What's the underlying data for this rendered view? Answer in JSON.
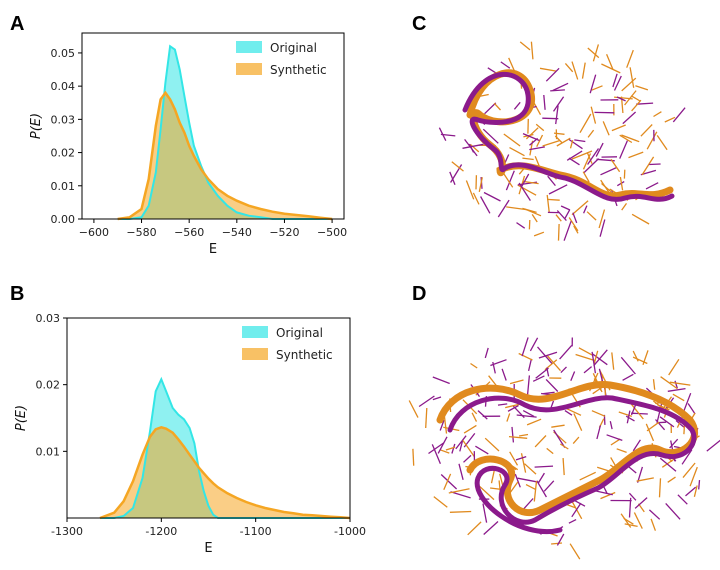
{
  "panels": {
    "A": "A",
    "B": "B",
    "C": "C",
    "D": "D"
  },
  "colors": {
    "original": "#33e6e6",
    "synthetic": "#f5a623",
    "overlap": "#a6b84a",
    "ribbon_purple": "#8b1a8b",
    "ribbon_orange": "#e08a1e"
  },
  "chart_data": [
    {
      "type": "area",
      "panel": "A",
      "xlabel": "E",
      "ylabel": "P(E)",
      "xlim": [
        -605,
        -495
      ],
      "ylim": [
        0,
        0.056
      ],
      "xticks": [
        -600,
        -580,
        -560,
        -540,
        -520,
        -500
      ],
      "xtick_labels": [
        "−600",
        "−580",
        "−560",
        "−540",
        "−520",
        "−500"
      ],
      "yticks": [
        0,
        0.01,
        0.02,
        0.03,
        0.04,
        0.05
      ],
      "ytick_labels": [
        "0.00",
        "0.01",
        "0.02",
        "0.03",
        "0.04",
        "0.05"
      ],
      "legend": "top-right",
      "x": [
        -590,
        -585,
        -580,
        -577,
        -574,
        -572,
        -570,
        -568,
        -566,
        -564,
        -562,
        -560,
        -558,
        -555,
        -552,
        -548,
        -544,
        -540,
        -535,
        -530,
        -525,
        -520,
        -515,
        -510,
        -505,
        -500
      ],
      "series": [
        {
          "name": "Original",
          "values": [
            0,
            0,
            0.0005,
            0.004,
            0.014,
            0.027,
            0.041,
            0.052,
            0.051,
            0.045,
            0.037,
            0.029,
            0.022,
            0.016,
            0.011,
            0.007,
            0.004,
            0.002,
            0.001,
            0.0005,
            0,
            0,
            0,
            0,
            0,
            0
          ]
        },
        {
          "name": "Synthetic",
          "values": [
            0,
            0.0005,
            0.003,
            0.012,
            0.028,
            0.036,
            0.038,
            0.036,
            0.033,
            0.029,
            0.026,
            0.022,
            0.019,
            0.015,
            0.012,
            0.009,
            0.007,
            0.0055,
            0.004,
            0.003,
            0.0022,
            0.0016,
            0.0012,
            0.0008,
            0.0004,
            0
          ]
        }
      ]
    },
    {
      "type": "area",
      "panel": "B",
      "xlabel": "E",
      "ylabel": "P(E)",
      "xlim": [
        -1300,
        -1000
      ],
      "ylim": [
        0,
        0.03
      ],
      "xticks": [
        -1300,
        -1200,
        -1100,
        -1000
      ],
      "xtick_labels": [
        "-1300",
        "-1200",
        "-1100",
        "-1000"
      ],
      "yticks": [
        0.01,
        0.02,
        0.03
      ],
      "ytick_labels": [
        "0.01",
        "0.02",
        "0.03"
      ],
      "legend": "top-right",
      "x": [
        -1265,
        -1250,
        -1240,
        -1230,
        -1220,
        -1212,
        -1206,
        -1200,
        -1195,
        -1188,
        -1182,
        -1176,
        -1170,
        -1165,
        -1160,
        -1155,
        -1150,
        -1145,
        -1140,
        -1130,
        -1120,
        -1110,
        -1100,
        -1090,
        -1080,
        -1070,
        -1060,
        -1050,
        -1040,
        -1030,
        -1020,
        -1010,
        -1000
      ],
      "series": [
        {
          "name": "Original",
          "values": [
            0,
            0,
            0.0003,
            0.0015,
            0.006,
            0.013,
            0.019,
            0.0208,
            0.019,
            0.0165,
            0.0155,
            0.0148,
            0.0135,
            0.0112,
            0.007,
            0.004,
            0.0018,
            0.0005,
            0,
            0,
            0,
            0,
            0,
            0,
            0,
            0,
            0,
            0,
            0,
            0,
            0,
            0,
            0
          ]
        },
        {
          "name": "Synthetic",
          "values": [
            0,
            0.0008,
            0.0025,
            0.0055,
            0.0095,
            0.0122,
            0.0133,
            0.0136,
            0.0134,
            0.0128,
            0.0118,
            0.0107,
            0.0095,
            0.0085,
            0.0075,
            0.0067,
            0.0059,
            0.0052,
            0.0046,
            0.0037,
            0.003,
            0.0024,
            0.0019,
            0.0015,
            0.0012,
            0.0009,
            0.0007,
            0.0005,
            0.0004,
            0.0003,
            0.0002,
            0.0001,
            0
          ]
        }
      ]
    }
  ]
}
